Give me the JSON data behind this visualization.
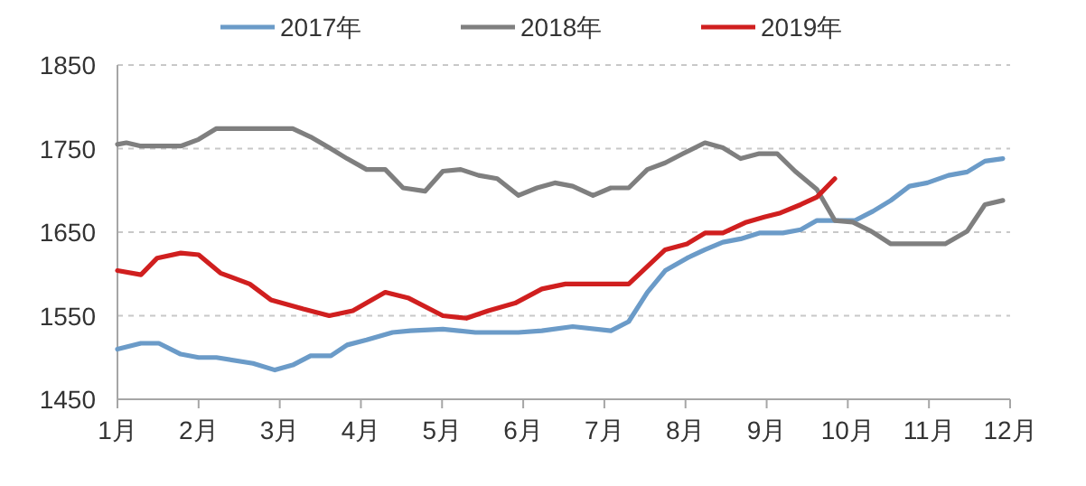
{
  "chart_data": {
    "type": "line",
    "xlim": [
      1,
      12
    ],
    "xticks": [
      {
        "value": 1,
        "label": "1月"
      },
      {
        "value": 2,
        "label": "2月"
      },
      {
        "value": 3,
        "label": "3月"
      },
      {
        "value": 4,
        "label": "4月"
      },
      {
        "value": 5,
        "label": "5月"
      },
      {
        "value": 6,
        "label": "6月"
      },
      {
        "value": 7,
        "label": "7月"
      },
      {
        "value": 8,
        "label": "8月"
      },
      {
        "value": 9,
        "label": "9月"
      },
      {
        "value": 10,
        "label": "10月"
      },
      {
        "value": 11,
        "label": "11月"
      },
      {
        "value": 12,
        "label": "12月"
      }
    ],
    "ylim": [
      1450,
      1850
    ],
    "yticks": [
      1450,
      1550,
      1650,
      1750,
      1850
    ],
    "grid": "y",
    "legend": "top",
    "line_style": "solid",
    "marker": "none",
    "series": [
      {
        "name": "2017年",
        "color": "#6b9bc8",
        "x": [
          1.0,
          1.29,
          1.51,
          1.78,
          2.0,
          2.22,
          2.67,
          2.94,
          3.16,
          3.38,
          3.63,
          3.83,
          4.07,
          4.39,
          4.61,
          5.01,
          5.41,
          5.94,
          6.23,
          6.61,
          7.08,
          7.3,
          7.53,
          7.75,
          8.02,
          8.24,
          8.46,
          8.68,
          8.91,
          9.2,
          9.42,
          9.62,
          9.84,
          10.09,
          10.31,
          10.53,
          10.76,
          10.98,
          11.24,
          11.47,
          11.69,
          11.91
        ],
        "values": [
          1510,
          1517,
          1517,
          1504,
          1500,
          1500,
          1493,
          1485,
          1491,
          1502,
          1502,
          1515,
          1521,
          1530,
          1532,
          1534,
          1530,
          1530,
          1532,
          1537,
          1532,
          1543,
          1578,
          1604,
          1619,
          1629,
          1638,
          1642,
          1649,
          1649,
          1653,
          1664,
          1664,
          1664,
          1675,
          1688,
          1705,
          1709,
          1718,
          1722,
          1735,
          1738
        ]
      },
      {
        "name": "2018年",
        "color": "#7f7f7f",
        "x": [
          1.0,
          1.11,
          1.29,
          1.78,
          2.0,
          2.22,
          3.16,
          3.38,
          3.61,
          3.83,
          4.07,
          4.3,
          4.52,
          4.79,
          5.01,
          5.23,
          5.45,
          5.68,
          5.94,
          6.17,
          6.39,
          6.61,
          6.86,
          7.08,
          7.3,
          7.53,
          7.75,
          7.97,
          8.24,
          8.46,
          8.68,
          8.91,
          9.13,
          9.35,
          9.62,
          9.84,
          10.06,
          10.29,
          10.53,
          11.2,
          11.47,
          11.69,
          11.91
        ],
        "values": [
          1755,
          1757,
          1753,
          1753,
          1761,
          1774,
          1774,
          1764,
          1751,
          1738,
          1725,
          1725,
          1703,
          1699,
          1723,
          1725,
          1718,
          1714,
          1694,
          1703,
          1709,
          1705,
          1694,
          1703,
          1703,
          1725,
          1733,
          1744,
          1757,
          1751,
          1738,
          1744,
          1744,
          1723,
          1701,
          1664,
          1662,
          1651,
          1636,
          1636,
          1651,
          1683,
          1688
        ]
      },
      {
        "name": "2019年",
        "color": "#d01f1f",
        "x": [
          1.0,
          1.29,
          1.49,
          1.78,
          2.0,
          2.27,
          2.63,
          2.89,
          3.29,
          3.61,
          3.9,
          4.3,
          4.59,
          5.01,
          5.3,
          5.57,
          5.9,
          6.23,
          6.52,
          7.3,
          7.75,
          8.02,
          8.24,
          8.46,
          8.75,
          8.97,
          9.17,
          9.42,
          9.62,
          9.84
        ],
        "values": [
          1604,
          1599,
          1619,
          1625,
          1623,
          1601,
          1588,
          1569,
          1558,
          1550,
          1556,
          1578,
          1571,
          1550,
          1547,
          1556,
          1565,
          1582,
          1588,
          1588,
          1629,
          1636,
          1649,
          1649,
          1662,
          1668,
          1673,
          1683,
          1692,
          1714
        ]
      }
    ]
  }
}
